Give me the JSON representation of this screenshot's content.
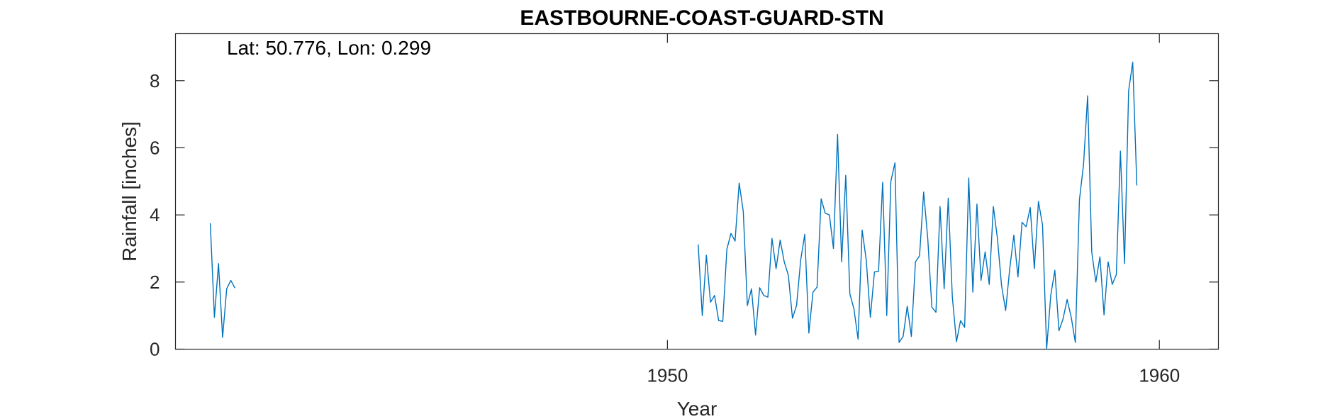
{
  "chart_data": {
    "type": "line",
    "title": "EASTBOURNE-COAST-GUARD-STN",
    "annotation": "Lat: 50.776, Lon: 0.299",
    "xlabel": "Year",
    "ylabel": "Rainfall [inches]",
    "xlim": [
      1940.0,
      1961.2
    ],
    "ylim": [
      0,
      9.4
    ],
    "xticks": [
      1950,
      1960
    ],
    "yticks": [
      0,
      2,
      4,
      6,
      8
    ],
    "grid": false,
    "line_color": "#0072BD",
    "series": [
      {
        "values_start_year": 1940.708,
        "step_months": 1,
        "segments": [
          {
            "start": 1940.708,
            "values": [
              3.75,
              0.95,
              2.55,
              0.35,
              1.8,
              2.05,
              1.82
            ]
          },
          {
            "start": 1950.625,
            "values": [
              3.12,
              1.0,
              2.8,
              1.4,
              1.6,
              0.85,
              0.83,
              2.98,
              3.45,
              3.22,
              4.95,
              4.1,
              1.3,
              1.8,
              0.42,
              1.83,
              1.6,
              1.55,
              3.3,
              2.4,
              3.25,
              2.6,
              2.2,
              0.92,
              1.3,
              2.65,
              3.42,
              0.48,
              1.7,
              1.85,
              4.48,
              4.05,
              4.0,
              3.0,
              6.4,
              2.6,
              5.18,
              1.65,
              1.2,
              0.3,
              3.55,
              2.65,
              0.95,
              2.3,
              2.32,
              4.97,
              1.0,
              5.0,
              5.55,
              0.2,
              0.38,
              1.28,
              0.38,
              2.6,
              2.78,
              4.68,
              3.3,
              1.25,
              1.1,
              4.25,
              1.8,
              4.5,
              1.55,
              0.22,
              0.85,
              0.65,
              5.1,
              1.7,
              4.32,
              2.05,
              2.9,
              1.93,
              4.25,
              3.3,
              1.9,
              1.15,
              2.4,
              3.4,
              2.15,
              3.78,
              3.65,
              4.22,
              2.4,
              4.4,
              3.7,
              0.0,
              1.6,
              2.35,
              0.55,
              0.9,
              1.48,
              0.95,
              0.2,
              4.45,
              5.5,
              7.55,
              2.9,
              2.0,
              2.75,
              1.02,
              2.6,
              1.93,
              2.22,
              5.9,
              2.55,
              7.7,
              8.55,
              4.88
            ]
          }
        ]
      }
    ]
  }
}
